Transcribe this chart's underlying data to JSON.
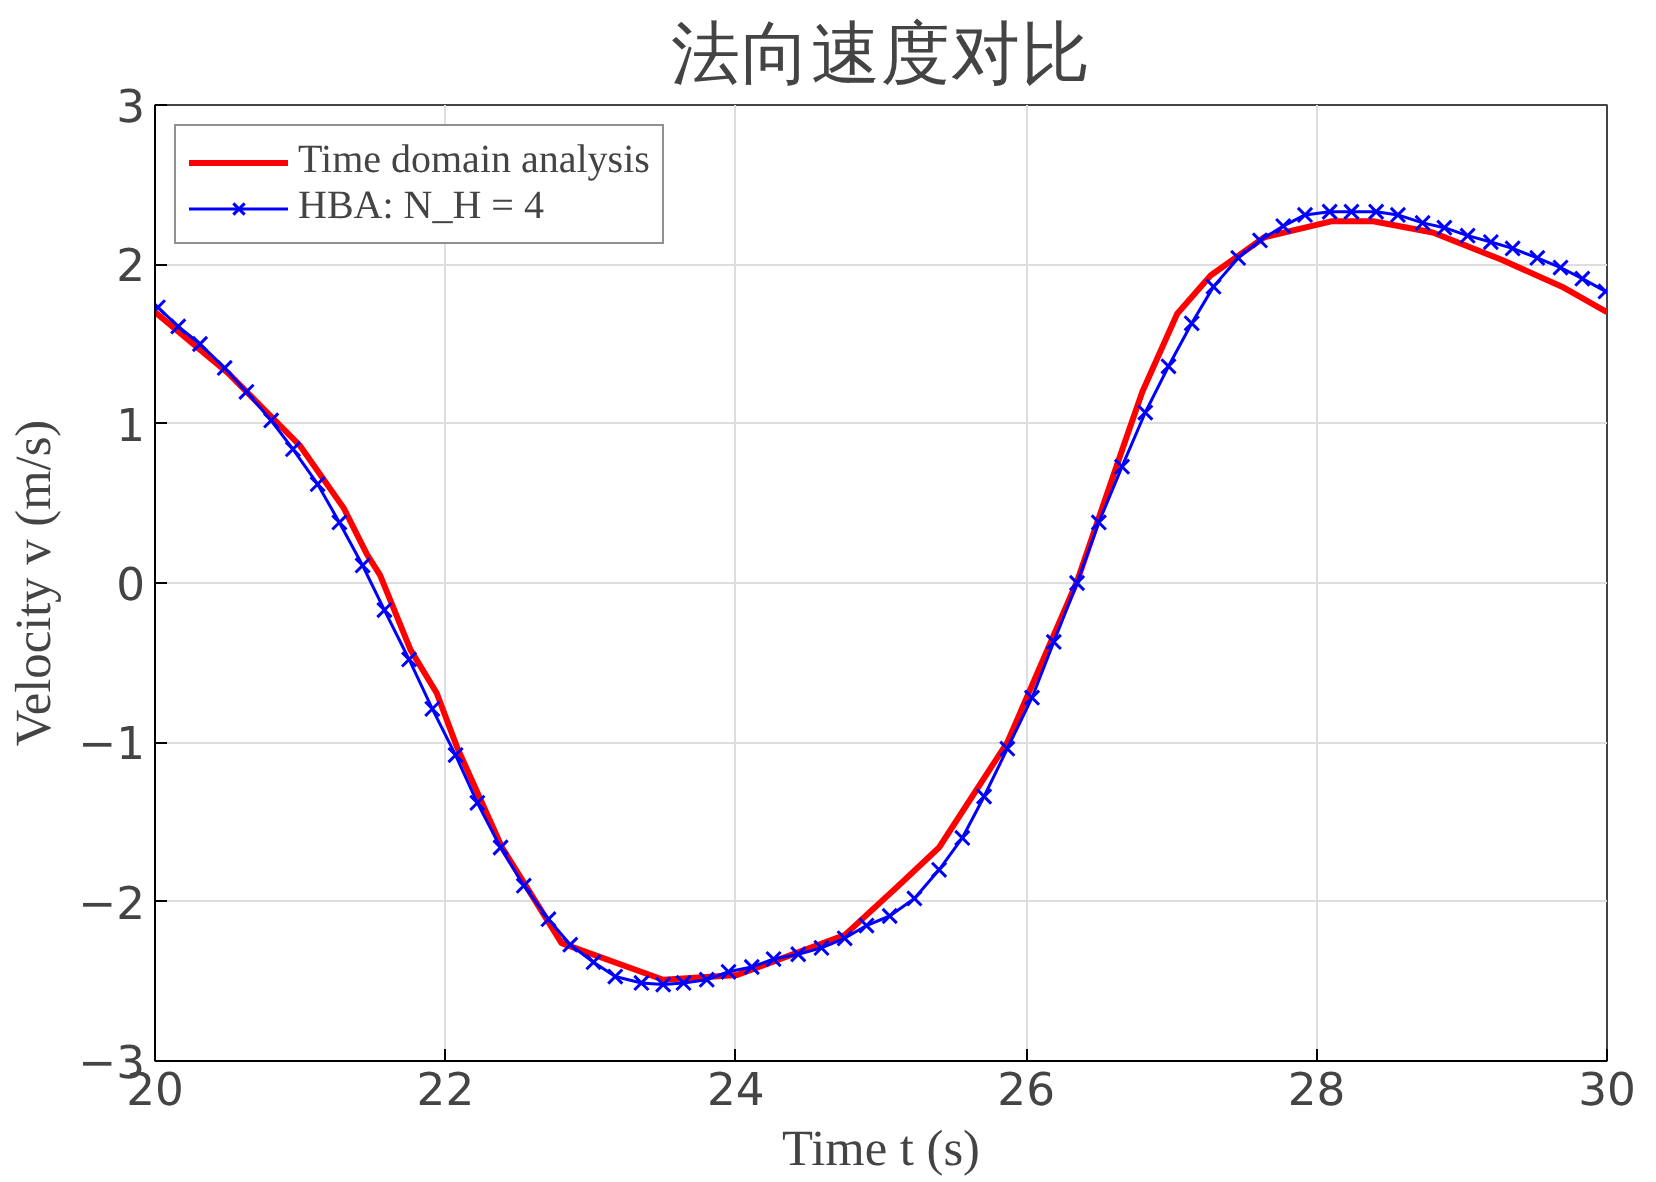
{
  "chart_data": {
    "type": "line",
    "title": "法向速度对比",
    "xlabel": "Time t (s)",
    "ylabel": "Velocity v (m/s)",
    "xlim": [
      20,
      30
    ],
    "ylim": [
      -3,
      3
    ],
    "xticks": [
      20,
      22,
      24,
      26,
      28,
      30
    ],
    "yticks": [
      -3,
      -2,
      -1,
      0,
      1,
      2,
      3
    ],
    "grid": true,
    "legend": "top left",
    "series": [
      {
        "name": "Time domain analysis",
        "color": "#ff0000",
        "marker": "none",
        "x": [
          20.0,
          20.5,
          21.0,
          21.3,
          21.46,
          21.55,
          21.76,
          21.94,
          22.08,
          22.39,
          22.8,
          23.5,
          24.01,
          24.75,
          25.12,
          25.4,
          25.87,
          26.35,
          26.67,
          26.8,
          27.04,
          27.27,
          27.64,
          28.1,
          28.39,
          28.8,
          29.27,
          29.69,
          30.0
        ],
        "values": [
          1.7,
          1.32,
          0.86,
          0.47,
          0.18,
          0.05,
          -0.42,
          -0.69,
          -1.03,
          -1.66,
          -2.26,
          -2.49,
          -2.46,
          -2.21,
          -1.9,
          -1.66,
          -1.0,
          0.01,
          0.86,
          1.2,
          1.69,
          1.93,
          2.17,
          2.27,
          2.27,
          2.2,
          2.03,
          1.86,
          1.7
        ]
      },
      {
        "name": "HBA: N_H = 4",
        "color": "#0000ff",
        "marker": "cross",
        "x": [
          20.02,
          20.16,
          20.31,
          20.48,
          20.63,
          20.8,
          20.95,
          21.12,
          21.27,
          21.43,
          21.58,
          21.75,
          21.91,
          22.07,
          22.22,
          22.38,
          22.54,
          22.71,
          22.86,
          23.02,
          23.17,
          23.35,
          23.5,
          23.64,
          23.8,
          23.95,
          24.11,
          24.26,
          24.43,
          24.59,
          24.75,
          24.9,
          25.06,
          25.23,
          25.4,
          25.56,
          25.71,
          25.87,
          26.04,
          26.19,
          26.35,
          26.5,
          26.66,
          26.82,
          26.98,
          27.14,
          27.29,
          27.46,
          27.61,
          27.77,
          27.92,
          28.09,
          28.24,
          28.41,
          28.56,
          28.73,
          28.88,
          29.04,
          29.2,
          29.35,
          29.52,
          29.68,
          29.83,
          29.99
        ],
        "values": [
          1.73,
          1.61,
          1.5,
          1.35,
          1.2,
          1.02,
          0.84,
          0.62,
          0.38,
          0.11,
          -0.17,
          -0.48,
          -0.79,
          -1.08,
          -1.38,
          -1.66,
          -1.9,
          -2.11,
          -2.27,
          -2.38,
          -2.47,
          -2.51,
          -2.52,
          -2.51,
          -2.49,
          -2.44,
          -2.41,
          -2.36,
          -2.33,
          -2.29,
          -2.23,
          -2.15,
          -2.09,
          -1.98,
          -1.8,
          -1.6,
          -1.34,
          -1.04,
          -0.72,
          -0.37,
          0.0,
          0.38,
          0.73,
          1.07,
          1.36,
          1.63,
          1.86,
          2.04,
          2.15,
          2.24,
          2.31,
          2.33,
          2.33,
          2.33,
          2.31,
          2.26,
          2.23,
          2.18,
          2.14,
          2.1,
          2.04,
          1.98,
          1.91,
          1.83
        ]
      }
    ]
  }
}
